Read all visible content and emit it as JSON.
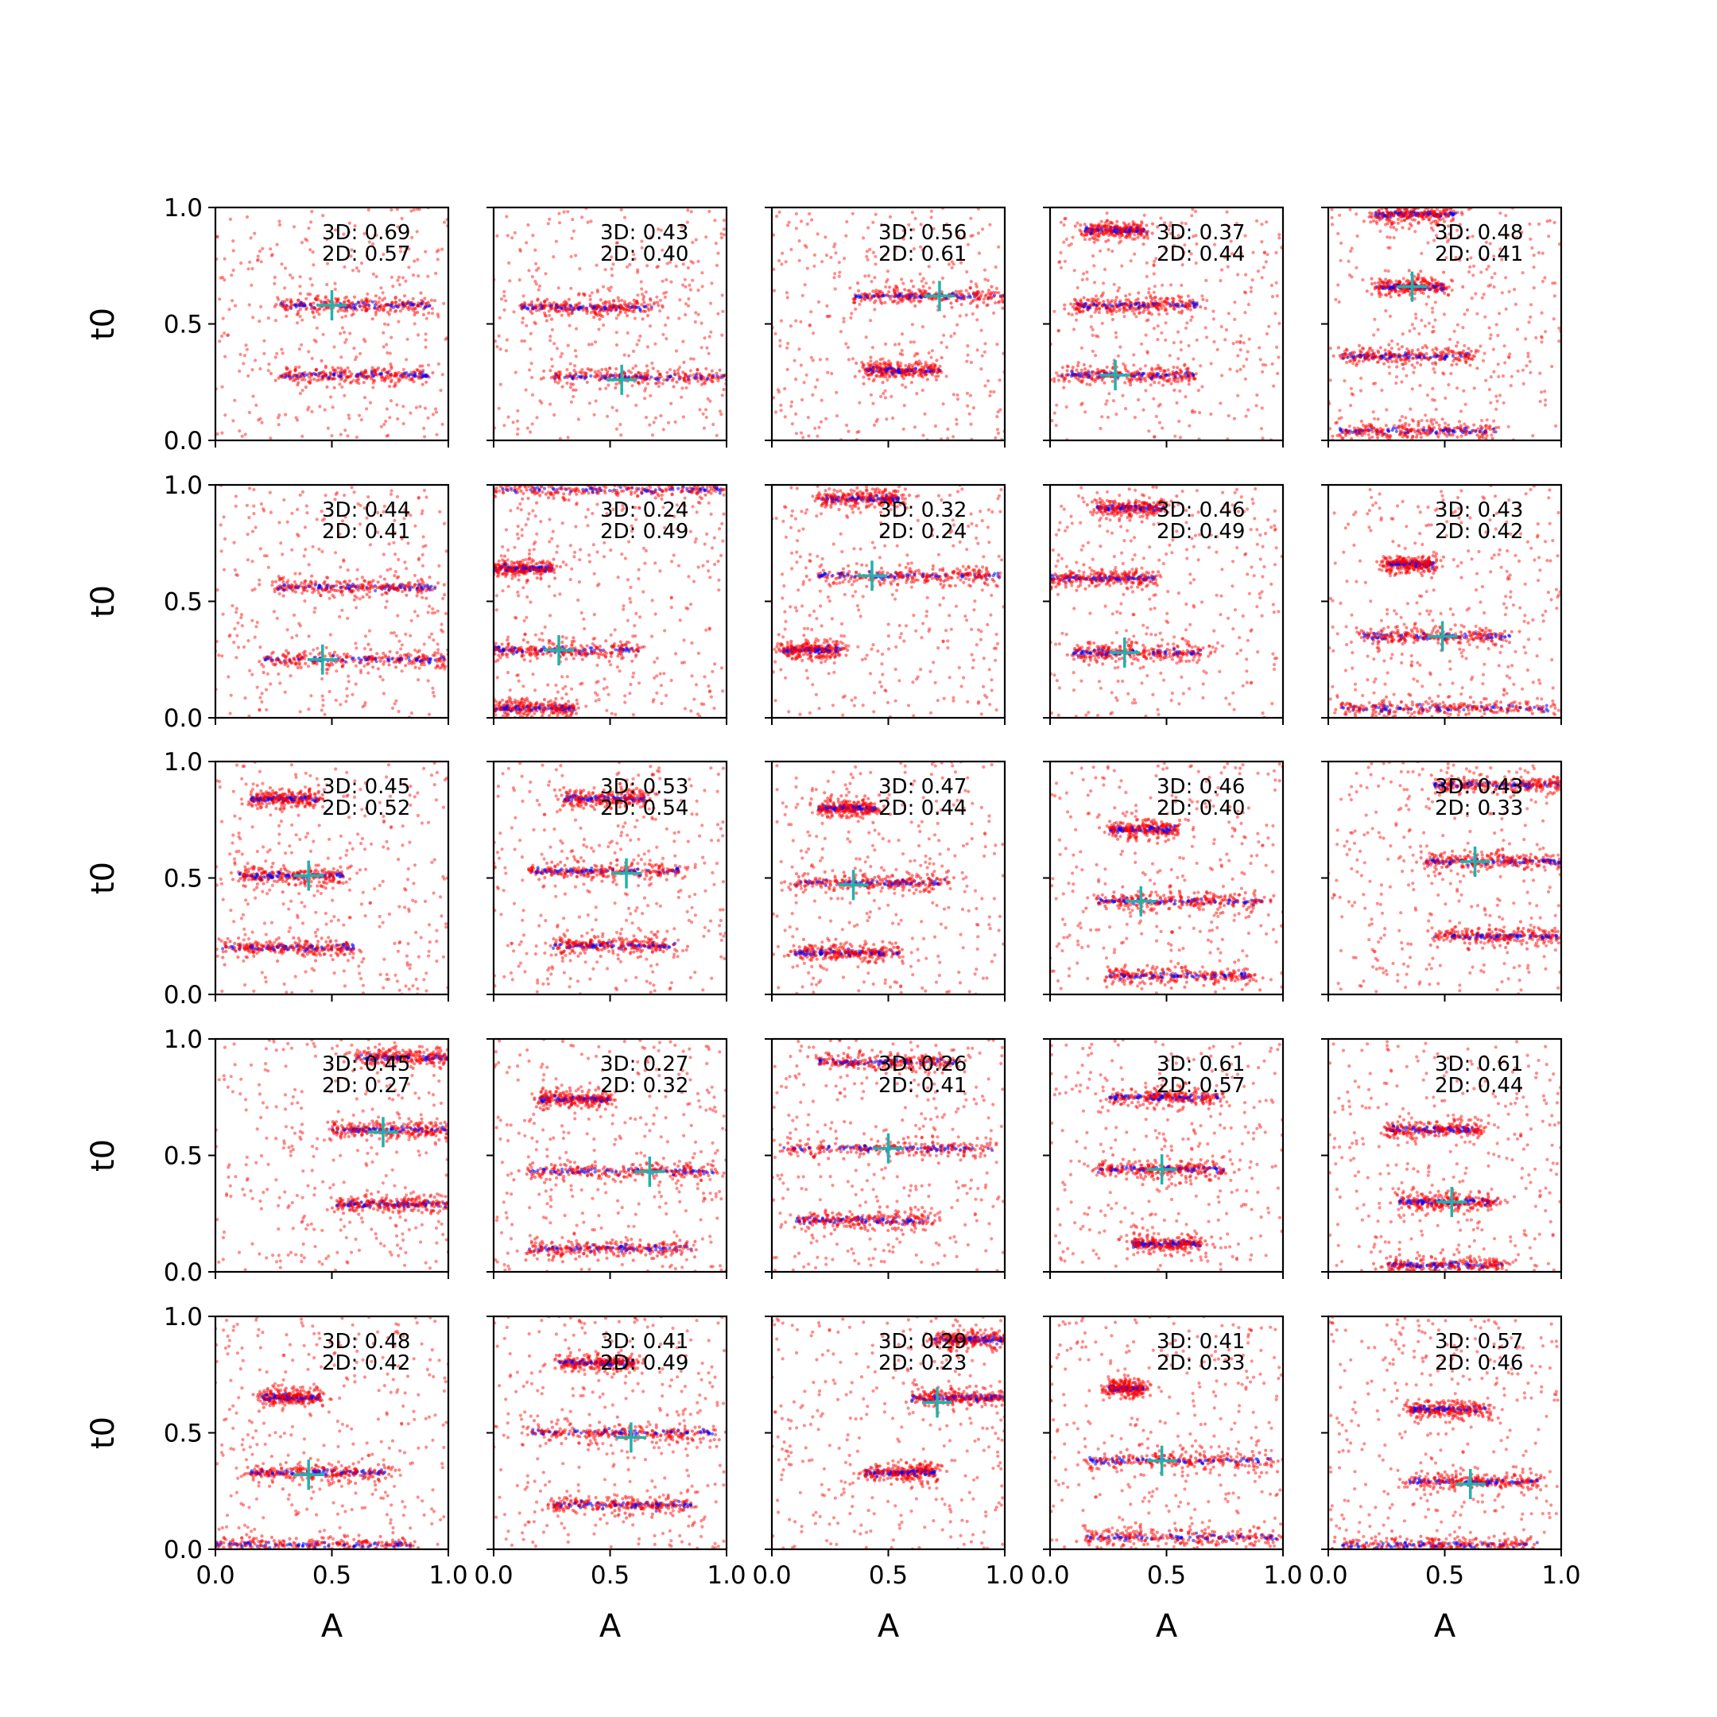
{
  "chart_data": {
    "type": "scatter",
    "layout": {
      "rows": 5,
      "cols": 5
    },
    "xlabel": "A",
    "ylabel": "t0",
    "xlim": [
      0,
      1
    ],
    "ylim": [
      0,
      1
    ],
    "xticks": [
      "0.0",
      "0.5",
      "1.0"
    ],
    "yticks": [
      "0.0",
      "0.5",
      "1.0"
    ],
    "grid": false,
    "colors": {
      "red_points": "#ff0000",
      "blue_points": "#0000ff",
      "marker": "#20b2aa"
    },
    "panels": [
      {
        "score_3d": "3D: 0.69",
        "score_2d": "2D: 0.57",
        "marker": [
          0.5,
          0.58
        ],
        "bands": [
          [
            0.58,
            0.28,
            0.92
          ],
          [
            0.28,
            0.28,
            0.92
          ]
        ]
      },
      {
        "score_3d": "3D: 0.43",
        "score_2d": "2D: 0.40",
        "marker": [
          0.55,
          0.26
        ],
        "bands": [
          [
            0.57,
            0.12,
            0.68
          ],
          [
            0.27,
            0.25,
            1.0
          ]
        ]
      },
      {
        "score_3d": "3D: 0.56",
        "score_2d": "2D: 0.61",
        "marker": [
          0.72,
          0.62
        ],
        "bands": [
          [
            0.62,
            0.35,
            1.0
          ],
          [
            0.3,
            0.4,
            0.72
          ]
        ]
      },
      {
        "score_3d": "3D: 0.37",
        "score_2d": "2D: 0.44",
        "marker": [
          0.28,
          0.28
        ],
        "bands": [
          [
            0.9,
            0.15,
            0.42
          ],
          [
            0.58,
            0.1,
            0.65
          ],
          [
            0.28,
            0.05,
            0.62
          ]
        ]
      },
      {
        "score_3d": "3D: 0.48",
        "score_2d": "2D: 0.41",
        "marker": [
          0.36,
          0.66
        ],
        "bands": [
          [
            0.97,
            0.2,
            0.55
          ],
          [
            0.66,
            0.2,
            0.5
          ],
          [
            0.36,
            0.05,
            0.62
          ],
          [
            0.04,
            0.05,
            0.72
          ]
        ]
      },
      {
        "score_3d": "3D: 0.44",
        "score_2d": "2D: 0.41",
        "marker": [
          0.46,
          0.25
        ],
        "bands": [
          [
            0.56,
            0.25,
            0.95
          ],
          [
            0.25,
            0.2,
            1.0
          ]
        ]
      },
      {
        "score_3d": "3D: 0.24",
        "score_2d": "2D: 0.49",
        "marker": [
          0.28,
          0.29
        ],
        "bands": [
          [
            0.98,
            0.0,
            1.0
          ],
          [
            0.64,
            0.0,
            0.25
          ],
          [
            0.29,
            0.0,
            0.62
          ],
          [
            0.04,
            0.0,
            0.35
          ]
        ]
      },
      {
        "score_3d": "3D: 0.32",
        "score_2d": "2D: 0.24",
        "marker": [
          0.43,
          0.61
        ],
        "bands": [
          [
            0.94,
            0.2,
            0.55
          ],
          [
            0.61,
            0.2,
            0.98
          ],
          [
            0.29,
            0.05,
            0.3
          ]
        ]
      },
      {
        "score_3d": "3D: 0.46",
        "score_2d": "2D: 0.49",
        "marker": [
          0.32,
          0.28
        ],
        "bands": [
          [
            0.9,
            0.2,
            0.5
          ],
          [
            0.6,
            0.0,
            0.45
          ],
          [
            0.28,
            0.1,
            0.65
          ]
        ]
      },
      {
        "score_3d": "3D: 0.43",
        "score_2d": "2D: 0.42",
        "marker": [
          0.49,
          0.35
        ],
        "bands": [
          [
            0.66,
            0.25,
            0.45
          ],
          [
            0.35,
            0.15,
            0.78
          ],
          [
            0.04,
            0.05,
            0.95
          ]
        ]
      },
      {
        "score_3d": "3D: 0.45",
        "score_2d": "2D: 0.52",
        "marker": [
          0.4,
          0.51
        ],
        "bands": [
          [
            0.84,
            0.15,
            0.45
          ],
          [
            0.51,
            0.1,
            0.55
          ],
          [
            0.2,
            0.03,
            0.6
          ]
        ]
      },
      {
        "score_3d": "3D: 0.53",
        "score_2d": "2D: 0.54",
        "marker": [
          0.57,
          0.52
        ],
        "bands": [
          [
            0.84,
            0.3,
            0.65
          ],
          [
            0.53,
            0.15,
            0.8
          ],
          [
            0.21,
            0.25,
            0.78
          ]
        ]
      },
      {
        "score_3d": "3D: 0.47",
        "score_2d": "2D: 0.44",
        "marker": [
          0.35,
          0.47
        ],
        "bands": [
          [
            0.8,
            0.2,
            0.45
          ],
          [
            0.48,
            0.1,
            0.75
          ],
          [
            0.18,
            0.1,
            0.55
          ]
        ]
      },
      {
        "score_3d": "3D: 0.46",
        "score_2d": "2D: 0.40",
        "marker": [
          0.39,
          0.4
        ],
        "bands": [
          [
            0.71,
            0.25,
            0.55
          ],
          [
            0.4,
            0.2,
            0.92
          ],
          [
            0.08,
            0.25,
            0.88
          ]
        ]
      },
      {
        "score_3d": "3D: 0.43",
        "score_2d": "2D: 0.33",
        "marker": [
          0.63,
          0.57
        ],
        "bands": [
          [
            0.9,
            0.45,
            1.0
          ],
          [
            0.57,
            0.42,
            1.0
          ],
          [
            0.25,
            0.45,
            1.0
          ]
        ]
      },
      {
        "score_3d": "3D: 0.45",
        "score_2d": "2D: 0.27",
        "marker": [
          0.72,
          0.6
        ],
        "bands": [
          [
            0.92,
            0.6,
            1.0
          ],
          [
            0.61,
            0.5,
            1.0
          ],
          [
            0.29,
            0.52,
            1.0
          ]
        ]
      },
      {
        "score_3d": "3D: 0.27",
        "score_2d": "2D: 0.32",
        "marker": [
          0.67,
          0.43
        ],
        "bands": [
          [
            0.74,
            0.2,
            0.5
          ],
          [
            0.43,
            0.15,
            0.95
          ],
          [
            0.1,
            0.15,
            0.85
          ]
        ]
      },
      {
        "score_3d": "3D: 0.26",
        "score_2d": "2D: 0.41",
        "marker": [
          0.5,
          0.53
        ],
        "bands": [
          [
            0.9,
            0.2,
            0.8
          ],
          [
            0.53,
            0.05,
            0.95
          ],
          [
            0.22,
            0.1,
            0.7
          ]
        ]
      },
      {
        "score_3d": "3D: 0.61",
        "score_2d": "2D: 0.57",
        "marker": [
          0.48,
          0.44
        ],
        "bands": [
          [
            0.75,
            0.25,
            0.72
          ],
          [
            0.44,
            0.2,
            0.75
          ],
          [
            0.12,
            0.35,
            0.65
          ]
        ]
      },
      {
        "score_3d": "3D: 0.61",
        "score_2d": "2D: 0.44",
        "marker": [
          0.53,
          0.3
        ],
        "bands": [
          [
            0.61,
            0.25,
            0.65
          ],
          [
            0.3,
            0.3,
            0.72
          ],
          [
            0.03,
            0.25,
            0.75
          ]
        ]
      },
      {
        "score_3d": "3D: 0.48",
        "score_2d": "2D: 0.42",
        "marker": [
          0.4,
          0.32
        ],
        "bands": [
          [
            0.65,
            0.2,
            0.45
          ],
          [
            0.33,
            0.15,
            0.75
          ],
          [
            0.02,
            0.0,
            0.85
          ]
        ]
      },
      {
        "score_3d": "3D: 0.41",
        "score_2d": "2D: 0.49",
        "marker": [
          0.59,
          0.48
        ],
        "bands": [
          [
            0.8,
            0.28,
            0.6
          ],
          [
            0.5,
            0.15,
            0.95
          ],
          [
            0.19,
            0.25,
            0.85
          ]
        ]
      },
      {
        "score_3d": "3D: 0.29",
        "score_2d": "2D: 0.23",
        "marker": [
          0.71,
          0.63
        ],
        "bands": [
          [
            0.9,
            0.7,
            1.0
          ],
          [
            0.65,
            0.6,
            1.0
          ],
          [
            0.33,
            0.4,
            0.7
          ]
        ]
      },
      {
        "score_3d": "3D: 0.41",
        "score_2d": "2D: 0.33",
        "marker": [
          0.48,
          0.38
        ],
        "bands": [
          [
            0.69,
            0.25,
            0.4
          ],
          [
            0.38,
            0.15,
            0.95
          ],
          [
            0.05,
            0.15,
            1.0
          ]
        ]
      },
      {
        "score_3d": "3D: 0.57",
        "score_2d": "2D: 0.46",
        "marker": [
          0.61,
          0.28
        ],
        "bands": [
          [
            0.6,
            0.35,
            0.68
          ],
          [
            0.29,
            0.35,
            0.9
          ],
          [
            0.02,
            0.05,
            0.9
          ]
        ]
      }
    ]
  }
}
